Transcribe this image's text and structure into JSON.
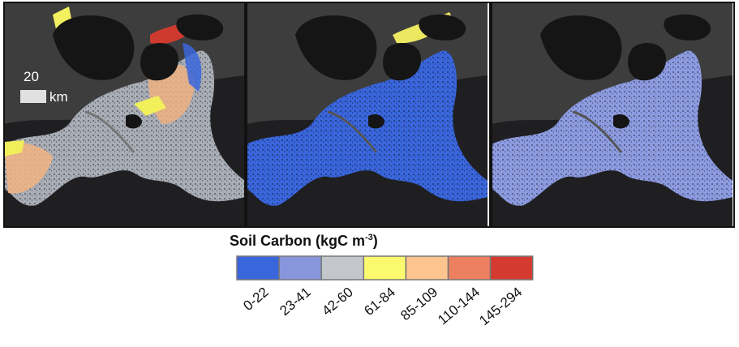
{
  "scale_bar": {
    "distance": "20",
    "unit": "km"
  },
  "legend": {
    "title": {
      "text": "Soil Carbon (kgC m",
      "superscript": "-3",
      "close": ")"
    },
    "items": [
      {
        "label": "0-22",
        "color": "#3a66dc"
      },
      {
        "label": "23-41",
        "color": "#8796dc"
      },
      {
        "label": "42-60",
        "color": "#c3c7cc"
      },
      {
        "label": "61-84",
        "color": "#fbfa6e"
      },
      {
        "label": "85-109",
        "color": "#fcc48e"
      },
      {
        "label": "110-144",
        "color": "#ec8060"
      },
      {
        "label": "145-294",
        "color": "#d43a30"
      }
    ]
  }
}
